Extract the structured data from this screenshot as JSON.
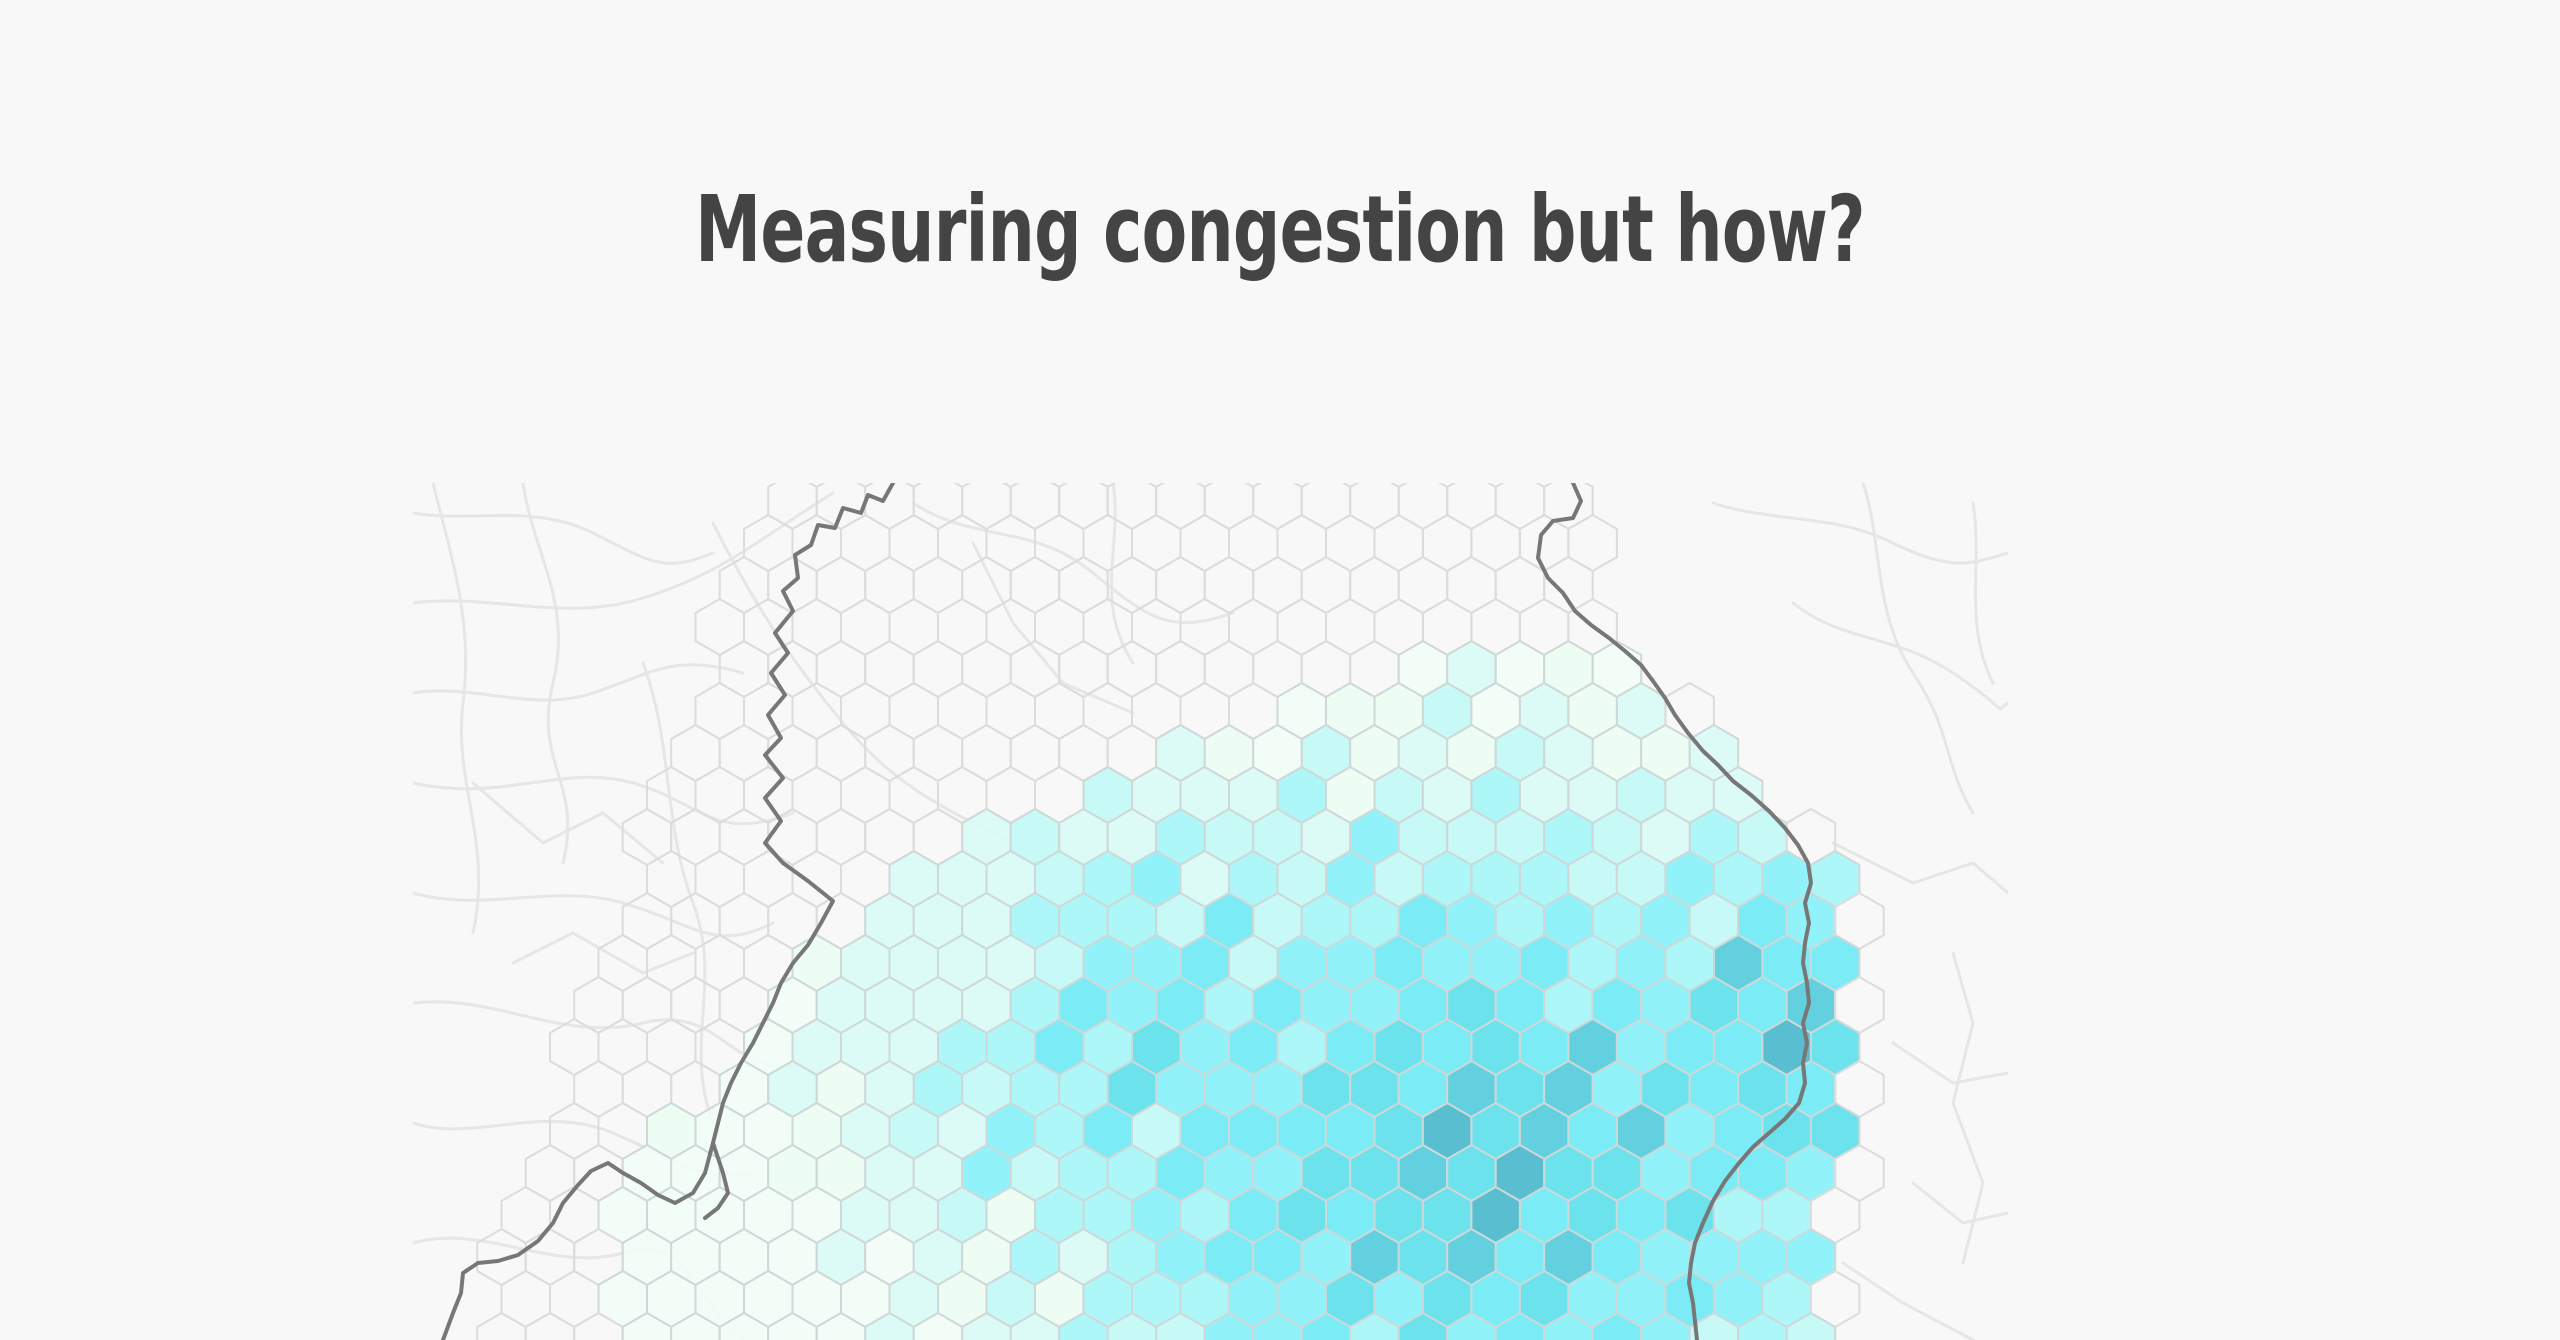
{
  "header": {
    "title": "Measuring congestion but how?"
  },
  "map": {
    "palette": [
      "#ffffff",
      "#f2fdf6",
      "#ecfdf3",
      "#d9fbf6",
      "#c2f8f6",
      "#a6f6f8",
      "#88f2f8",
      "#70eaf4",
      "#5fdfeb",
      "#55ccdc",
      "#4bb9cb"
    ],
    "hex_stroke": "#cfd8d8",
    "empty_hex_stroke": "#dcdcdc",
    "boundary_color": "#777777",
    "road_color": "#e6e6e6"
  }
}
